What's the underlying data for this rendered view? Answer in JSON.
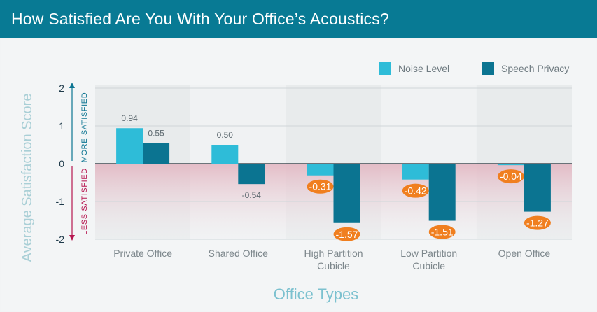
{
  "header": {
    "title": "How Satisfied Are You With Your Office’s Acoustics?"
  },
  "colors": {
    "header_bg": "#087a94",
    "noise": "#2ebcd8",
    "speech": "#0b7491",
    "highlight": "#f07f1f",
    "more_arrow": "#0b7491",
    "less_arrow": "#b6154f",
    "negative_band": "#e8c4cc"
  },
  "chart_data": {
    "type": "bar",
    "title": "How Satisfied Are You With Your Office’s Acoustics?",
    "xlabel": "Office Types",
    "ylabel": "Average Satisfaction Score",
    "ylim": [
      -2,
      2
    ],
    "yticks": [
      "2",
      "1",
      "0",
      "-1",
      "-2"
    ],
    "more_label": "MORE SATISFIED",
    "less_label": "LESS SATISFIED",
    "legend_position": "top-right",
    "categories": [
      [
        "Private Office"
      ],
      [
        "Shared Office"
      ],
      [
        "High Partition",
        "Cubicle"
      ],
      [
        "Low Partition",
        "Cubicle"
      ],
      [
        "Open Office"
      ]
    ],
    "series": [
      {
        "name": "Noise Level",
        "values": [
          0.94,
          0.5,
          -0.31,
          -0.42,
          -0.04
        ],
        "labels": [
          "0.94",
          "0.50",
          "-0.31",
          "-0.42",
          "-0.04"
        ]
      },
      {
        "name": "Speech Privacy",
        "values": [
          0.55,
          -0.54,
          -1.57,
          -1.51,
          -1.27
        ],
        "labels": [
          "0.55",
          "-0.54",
          "-1.57",
          "-1.51",
          "-1.27"
        ]
      }
    ],
    "highlighted_categories": [
      2,
      3,
      4
    ]
  }
}
